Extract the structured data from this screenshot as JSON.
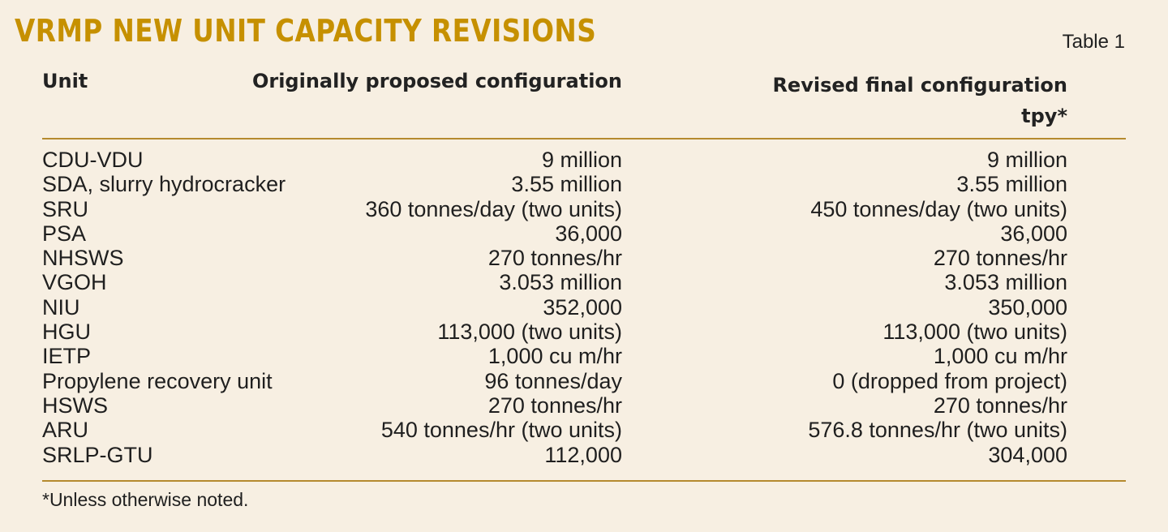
{
  "title": "VRMP NEW UNIT CAPACITY REVISIONS",
  "table_label": "Table 1",
  "columns": {
    "unit": "Unit",
    "original": "Originally proposed configuration",
    "revised_line1": "Revised final configuration",
    "revised_line2": "tpy*"
  },
  "rows": [
    {
      "unit": "CDU-VDU",
      "original": "9 million",
      "revised": "9 million"
    },
    {
      "unit": "SDA, slurry hydrocracker",
      "original": "3.55 million",
      "revised": "3.55 million"
    },
    {
      "unit": "SRU",
      "original": "360 tonnes/day (two units)",
      "revised": "450 tonnes/day (two units)"
    },
    {
      "unit": "PSA",
      "original": "36,000",
      "revised": "36,000"
    },
    {
      "unit": "NHSWS",
      "original": "270 tonnes/hr",
      "revised": "270 tonnes/hr"
    },
    {
      "unit": "VGOH",
      "original": "3.053 million",
      "revised": "3.053 million"
    },
    {
      "unit": "NIU",
      "original": "352,000",
      "revised": "350,000"
    },
    {
      "unit": "HGU",
      "original": "113,000 (two units)",
      "revised": "113,000 (two units)"
    },
    {
      "unit": "IETP",
      "original": "1,000 cu m/hr",
      "revised": "1,000 cu m/hr"
    },
    {
      "unit": "Propylene recovery unit",
      "original": "96 tonnes/day",
      "revised": "0 (dropped from project)"
    },
    {
      "unit": "HSWS",
      "original": "270 tonnes/hr",
      "revised": "270 tonnes/hr"
    },
    {
      "unit": "ARU",
      "original": "540 tonnes/hr (two units)",
      "revised": "576.8 tonnes/hr (two units)"
    },
    {
      "unit": "SRLP-GTU",
      "original": "112,000",
      "revised": "304,000"
    }
  ],
  "footnote": "*Unless otherwise noted.",
  "colors": {
    "background": "#f7efe2",
    "title": "#c69000",
    "rule": "#b58a2f",
    "text": "#1f1f1f"
  }
}
